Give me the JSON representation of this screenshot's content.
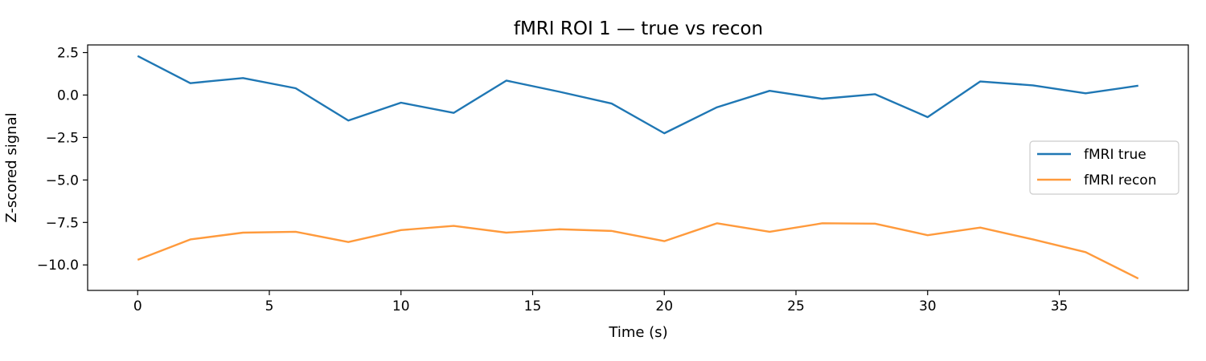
{
  "chart_data": {
    "type": "line",
    "title": "fMRI ROI 1 — true vs recon",
    "xlabel": "Time (s)",
    "ylabel": "Z-scored signal",
    "xlim": [
      -1.9,
      39.9
    ],
    "ylim": [
      -11.5,
      2.95
    ],
    "xticks": [
      0,
      5,
      10,
      15,
      20,
      25,
      30,
      35
    ],
    "yticks": [
      2.5,
      0.0,
      -2.5,
      -5.0,
      -7.5,
      -10.0
    ],
    "xtick_labels": [
      "0",
      "5",
      "10",
      "15",
      "20",
      "25",
      "30",
      "35"
    ],
    "ytick_labels": [
      "2.5",
      "0.0",
      "−2.5",
      "−5.0",
      "−7.5",
      "−10.0"
    ],
    "grid": false,
    "legend_position": "center-right",
    "x": [
      0,
      2,
      4,
      6,
      8,
      10,
      12,
      14,
      16,
      18,
      20,
      22,
      24,
      26,
      28,
      30,
      32,
      34,
      36,
      38
    ],
    "series": [
      {
        "name": "fMRI true",
        "color": "#1f77b4",
        "values": [
          2.3,
          0.7,
          1.0,
          0.4,
          -1.5,
          -0.45,
          -1.05,
          0.85,
          0.2,
          -0.5,
          -2.25,
          -0.72,
          0.25,
          -0.22,
          0.05,
          -1.3,
          0.8,
          0.57,
          0.1,
          0.55
        ]
      },
      {
        "name": "fMRI recon",
        "color": "#ff9a3c",
        "values": [
          -9.7,
          -8.5,
          -8.1,
          -8.05,
          -8.65,
          -7.95,
          -7.7,
          -8.1,
          -7.9,
          -8.0,
          -8.6,
          -7.55,
          -8.05,
          -7.55,
          -7.57,
          -8.25,
          -7.8,
          -8.5,
          -9.25,
          -10.8
        ]
      }
    ]
  }
}
